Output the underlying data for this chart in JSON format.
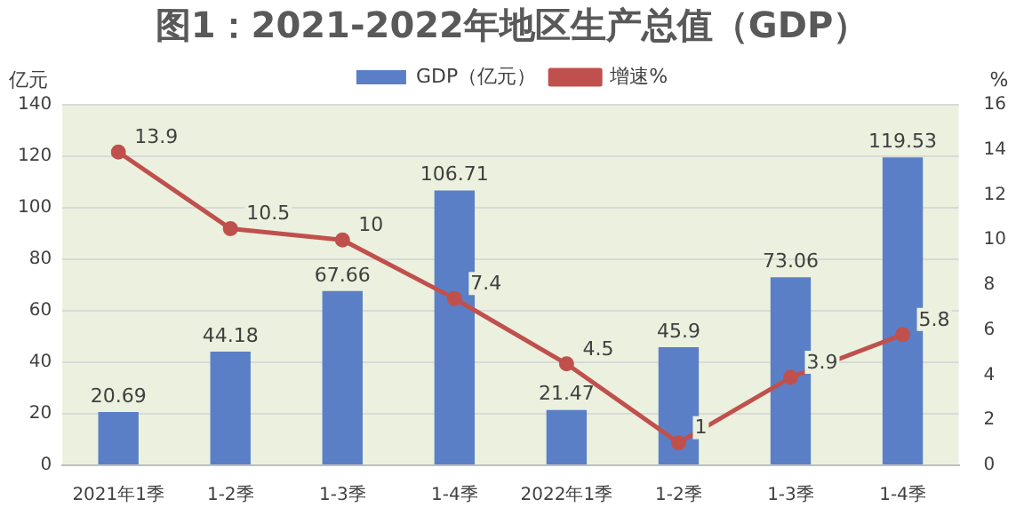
{
  "chart_data": {
    "type": "bar",
    "title": "图1：2021-2022年地区生产总值（GDP）",
    "ylabel": "亿元",
    "y2label": "%",
    "categories": [
      "2021年1季",
      "1-2季",
      "1-3季",
      "1-4季",
      "2022年1季",
      "1-2季",
      "1-3季",
      "1-4季"
    ],
    "series": [
      {
        "name": "GDP（亿元）",
        "color": "#5b7fc7",
        "values": [
          20.69,
          44.18,
          67.66,
          106.71,
          21.47,
          45.9,
          73.06,
          119.53
        ]
      },
      {
        "name": "增速%",
        "type": "line",
        "axis": "y2",
        "color": "#c0504d",
        "marker": "circle",
        "values": [
          13.9,
          10.5,
          10,
          7.4,
          4.5,
          1,
          3.9,
          5.8
        ]
      }
    ],
    "ylim": [
      0,
      140
    ],
    "yticks": [
      0,
      20,
      40,
      60,
      80,
      100,
      120,
      140
    ],
    "y2lim": [
      0,
      16
    ],
    "y2ticks": [
      0,
      2,
      4,
      6,
      8,
      10,
      12,
      14,
      16
    ],
    "grid": "y",
    "legend": "top",
    "data_labels": true
  }
}
